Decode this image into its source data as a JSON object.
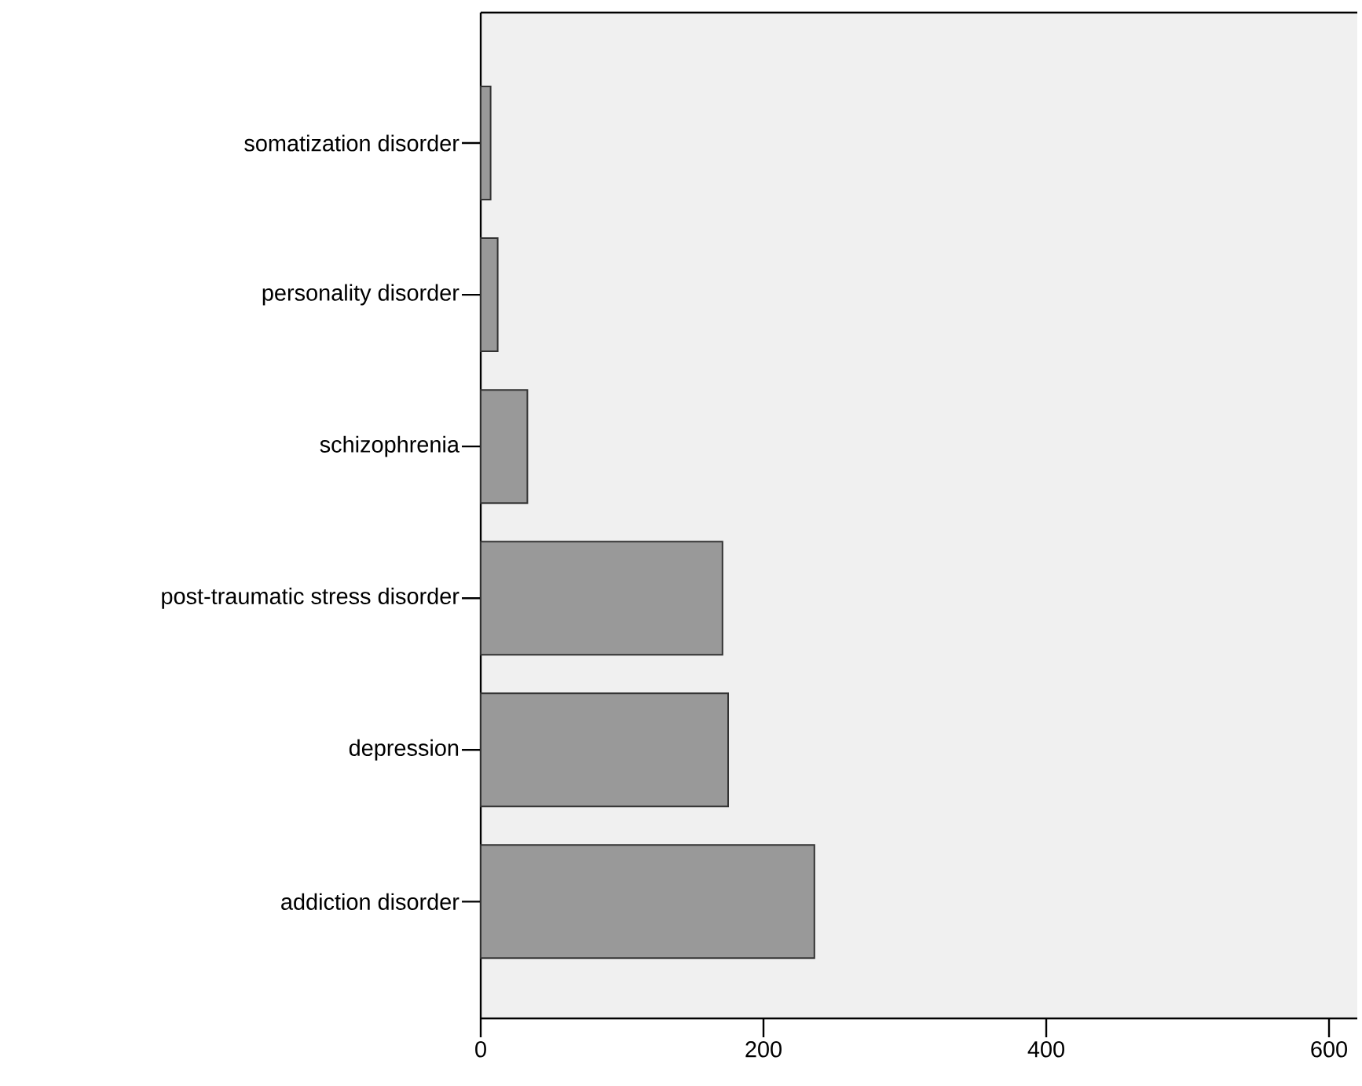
{
  "chart_data": {
    "type": "bar",
    "orientation": "horizontal",
    "categories": [
      "somatization disorder",
      "personality disorder",
      "schizophrenia",
      "post-traumatic stress disorder",
      "depression",
      "addiction disorder"
    ],
    "values": [
      7,
      12,
      33,
      171,
      175,
      236
    ],
    "color": "#999999",
    "xlim": [
      0,
      620
    ],
    "xticks": [
      0,
      200,
      400,
      600
    ]
  }
}
